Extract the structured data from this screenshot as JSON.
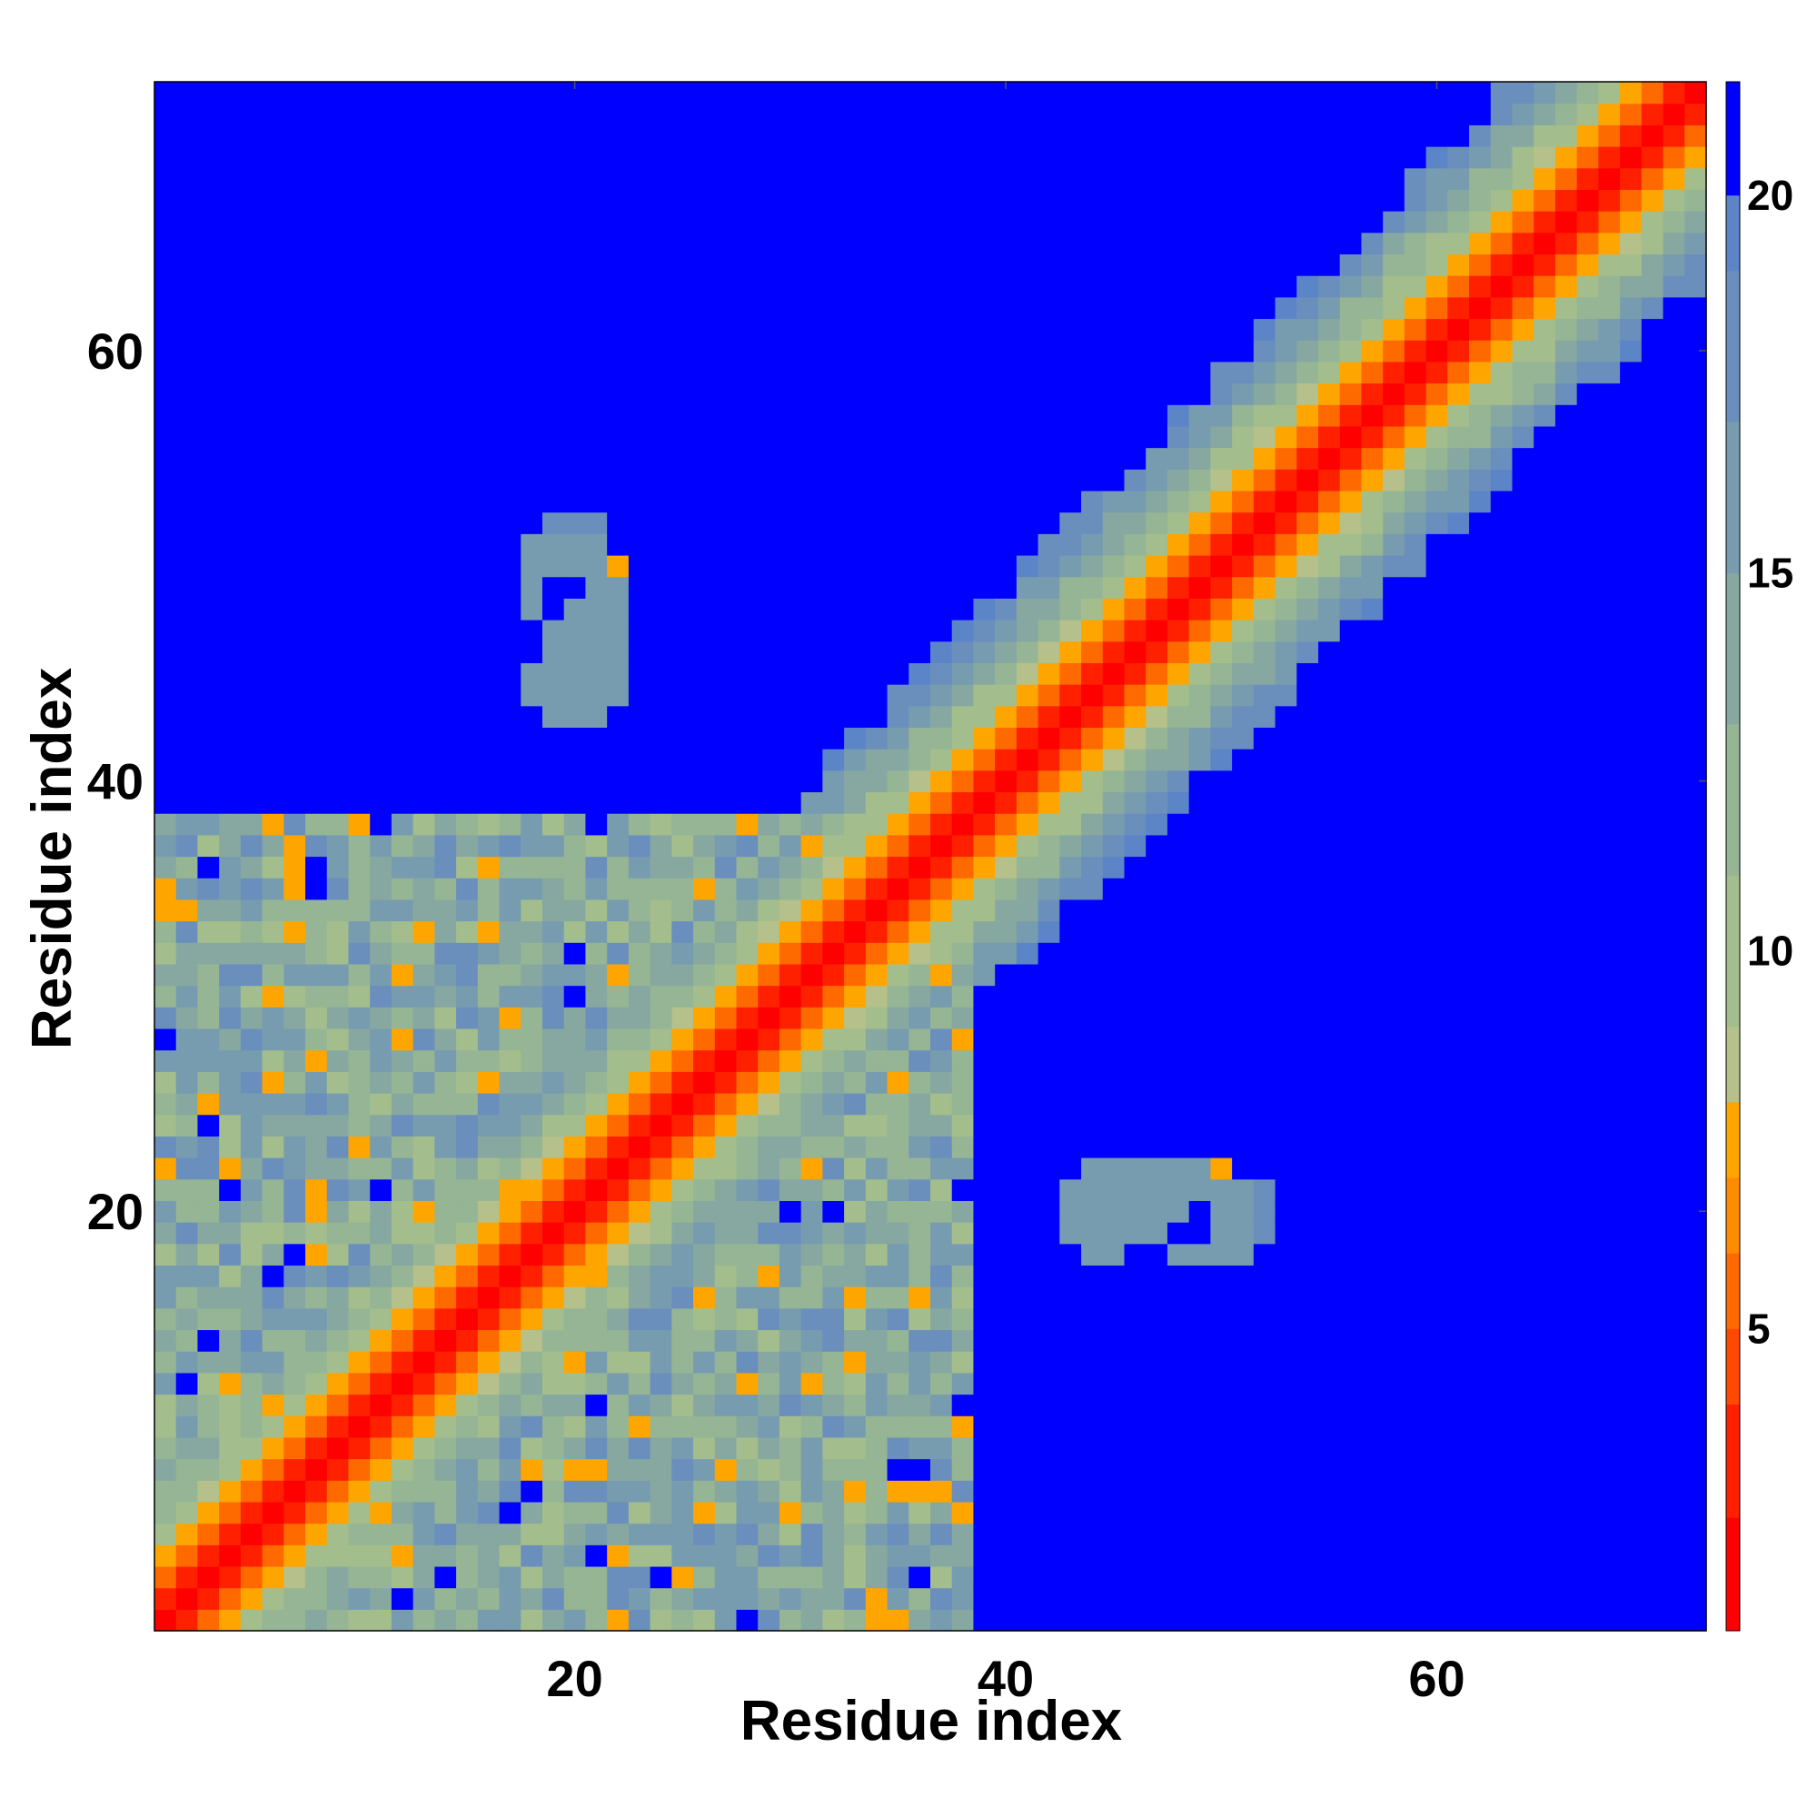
{
  "chart_data": {
    "type": "heatmap",
    "title": "",
    "xlabel": "Residue index",
    "ylabel": "Residue index",
    "n_residues": 72,
    "x_ticks": [
      20,
      40,
      60
    ],
    "y_ticks": [
      20,
      40,
      60
    ],
    "xlim": [
      0.5,
      72.5
    ],
    "ylim": [
      0.5,
      72.5
    ],
    "colorbar": {
      "range": [
        1,
        21.5
      ],
      "ticks": [
        5,
        10,
        15,
        20
      ],
      "bands": [
        {
          "from": 1.0,
          "to": 2.5,
          "color": "#ff0000"
        },
        {
          "from": 2.5,
          "to": 4.0,
          "color": "#ff2000"
        },
        {
          "from": 4.0,
          "to": 5.0,
          "color": "#ff4800"
        },
        {
          "from": 5.0,
          "to": 6.0,
          "color": "#ff6a00"
        },
        {
          "from": 6.0,
          "to": 7.0,
          "color": "#ff8c00"
        },
        {
          "from": 7.0,
          "to": 8.0,
          "color": "#ffa500"
        },
        {
          "from": 8.0,
          "to": 9.0,
          "color": "#b5c08a"
        },
        {
          "from": 9.0,
          "to": 11.0,
          "color": "#a3be8c"
        },
        {
          "from": 11.0,
          "to": 13.0,
          "color": "#95b594"
        },
        {
          "from": 13.0,
          "to": 15.0,
          "color": "#87a8a0"
        },
        {
          "from": 15.0,
          "to": 17.0,
          "color": "#779cb0"
        },
        {
          "from": 17.0,
          "to": 19.0,
          "color": "#6a8fbc"
        },
        {
          "from": 19.0,
          "to": 20.0,
          "color": "#5c85c8"
        },
        {
          "from": 20.0,
          "to": 21.5,
          "color": "#0000ff"
        }
      ]
    },
    "description_of_values": "Symmetric residue-residue distance map; values ~1-3 on the main diagonal (red), rising through orange and green-grey to blue (>=20) far from the diagonal. Off-diagonal contact cluster in the region residues 1-38 x 1-38, plus isolated patches near (20,48) and (48,20).",
    "patches": [
      {
        "x": [
          18,
          22
        ],
        "y": [
          43,
          51
        ],
        "level": 16
      },
      {
        "x": [
          22,
          22
        ],
        "y": [
          50,
          50
        ],
        "level": 7
      },
      {
        "x": [
          44,
          52
        ],
        "y": [
          18,
          21
        ],
        "level": 17
      },
      {
        "x": [
          50,
          50
        ],
        "y": [
          22,
          22
        ],
        "level": 7
      }
    ]
  }
}
